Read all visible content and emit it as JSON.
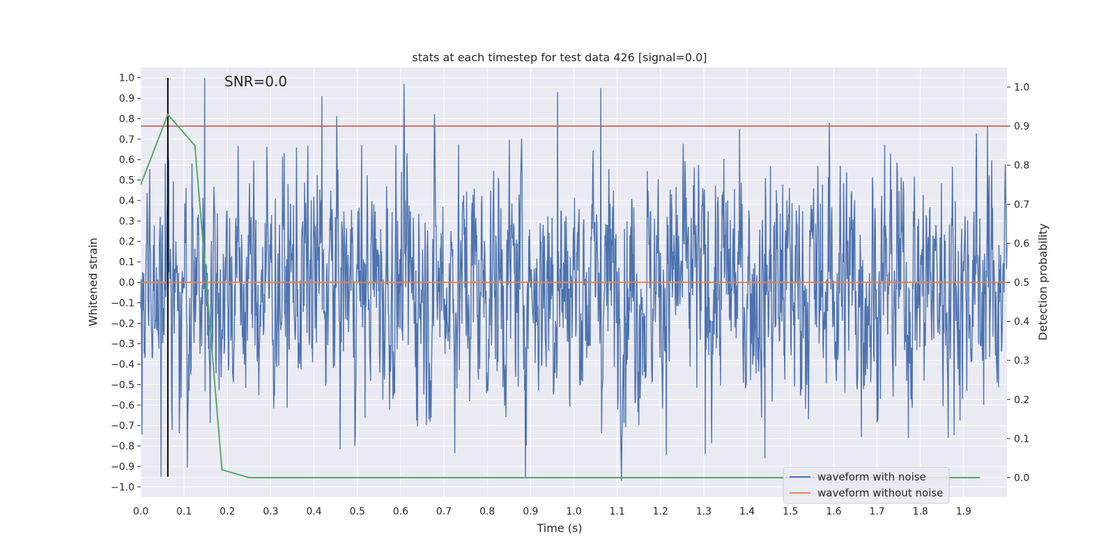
{
  "chart_data": {
    "type": "line",
    "title": "stats at each timestep for test data 426 [signal=0.0]",
    "annotation": "SNR=0.0",
    "xlabel": "Time (s)",
    "ylabel": "Whitened strain",
    "ylabel_right": "Detection probability",
    "xlim": [
      0.0,
      2.0
    ],
    "ylim": [
      -1.05,
      1.05
    ],
    "ylim_right": [
      -0.05,
      1.05
    ],
    "x_ticks": [
      "0.0",
      "0.1",
      "0.2",
      "0.3",
      "0.4",
      "0.5",
      "0.6",
      "0.7",
      "0.8",
      "0.9",
      "1.0",
      "1.1",
      "1.2",
      "1.3",
      "1.4",
      "1.5",
      "1.6",
      "1.7",
      "1.8",
      "1.9"
    ],
    "y_ticks": [
      "1.0",
      "0.9",
      "0.8",
      "0.7",
      "0.6",
      "0.5",
      "0.4",
      "0.3",
      "0.2",
      "0.1",
      "0.0",
      "−0.1",
      "−0.2",
      "−0.3",
      "−0.4",
      "−0.5",
      "−0.6",
      "−0.7",
      "−0.8",
      "−0.9",
      "−1.0"
    ],
    "y_ticks_right": [
      "1.0",
      "0.9",
      "0.8",
      "0.7",
      "0.6",
      "0.5",
      "0.4",
      "0.3",
      "0.2",
      "0.1",
      "0.0"
    ],
    "grid": true,
    "legend_position": "bottom-right",
    "series": [
      {
        "name": "waveform with noise",
        "color": "#4c72b0",
        "axis": "left",
        "n_samples": 2048,
        "approx_std": 0.3
      },
      {
        "name": "waveform without noise",
        "color": "#dd8452",
        "axis": "left",
        "x": [
          0.0,
          2.0
        ],
        "y": [
          0.0,
          0.0
        ]
      },
      {
        "name": "detection probability",
        "color": "#55a868",
        "axis": "right",
        "x": [
          0.0,
          0.0625,
          0.125,
          0.1875,
          0.25,
          0.5,
          1.0,
          1.5,
          1.9375
        ],
        "y": [
          0.75,
          0.93,
          0.85,
          0.02,
          0.0,
          0.0,
          0.0,
          0.0,
          0.0
        ]
      }
    ],
    "threshold_line": {
      "axis": "right",
      "y": 0.9,
      "color": "#c44e52"
    },
    "marker_line": {
      "x": 0.0625,
      "y_range": [
        -0.95,
        1.0
      ],
      "color": "#000000"
    },
    "noise_peaks": [
      {
        "x": 0.148,
        "y": 1.0
      },
      {
        "x": 0.418,
        "y": 0.91
      },
      {
        "x": 0.962,
        "y": 0.93
      },
      {
        "x": 1.062,
        "y": 0.95
      },
      {
        "x": 0.047,
        "y": -0.95
      },
      {
        "x": 1.441,
        "y": -0.86
      },
      {
        "x": 1.303,
        "y": -0.84
      },
      {
        "x": 1.59,
        "y": 0.78
      }
    ]
  }
}
